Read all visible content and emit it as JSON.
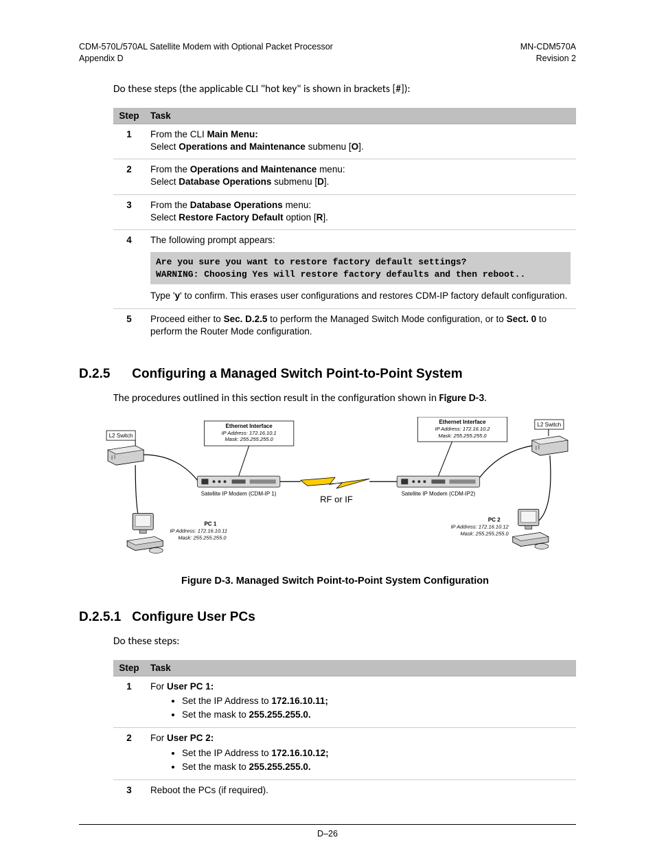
{
  "header": {
    "left_line1": "CDM-570L/570AL Satellite Modem with Optional Packet Processor",
    "left_line2": "Appendix D",
    "right_line1": "MN-CDM570A",
    "right_line2": "Revision 2"
  },
  "intro": "Do these steps (the applicable CLI \"hot key\" is shown in brackets [#]):",
  "table1": {
    "head_step": "Step",
    "head_task": "Task",
    "rows": [
      {
        "n": "1",
        "html": "From the CLI <b>Main Menu:</b><br>Select <b>Operations and Maintenance</b> submenu [<b>O</b>]."
      },
      {
        "n": "2",
        "html": "From the <b>Operations and Maintenance</b> menu:<br>Select <b>Database Operations</b> submenu [<b>D</b>]."
      },
      {
        "n": "3",
        "html": "From the <b>Database Operations</b> menu:<br>Select <b>Restore Factory Default</b> option [<b>R</b>]."
      },
      {
        "n": "4",
        "html": "The following prompt appears:<div class=\"code-prompt\">Are you sure you want to restore factory default settings?\nWARNING: Choosing Yes will restore factory defaults and then reboot..</div>Type '<b>y</b>' to confirm. This erases user configurations and restores CDM-IP factory default configuration."
      },
      {
        "n": "5",
        "html": "Proceed either to <b>Sec. D.2.5</b> to perform the Managed Switch Mode configuration, or to <b>Sect. 0</b> to perform the Router Mode configuration."
      }
    ]
  },
  "section_d25": {
    "num": "D.2.5",
    "title": "Configuring a Managed Switch Point-to-Point System",
    "body_html": "The procedures outlined in this section result in the configuration shown in <b>Figure D-3</b>."
  },
  "figure": {
    "caption": "Figure D-3. Managed Switch Point-to-Point System Configuration",
    "rf_label": "RF or IF",
    "left": {
      "l2": "L2 Switch",
      "eth_title": "Ethernet Interface",
      "eth_ip": "IP Address:  172.16.10.1",
      "eth_mask": "Mask:  255.255.255.0",
      "modem": "Satellite IP Modem (CDM-IP 1)",
      "pc_title": "PC 1",
      "pc_ip": "IP Address:  172.16.10.11",
      "pc_mask": "Mask:  255.255.255.0"
    },
    "right": {
      "l2": "L2 Switch",
      "eth_title": "Ethernet Interface",
      "eth_ip": "IP Address:  172.16.10.2",
      "eth_mask": "Mask:  255.255.255.0",
      "modem": "Satellite IP Modem (CDM-IP2)",
      "pc_title": "PC 2",
      "pc_ip": "IP Address: 172.16.10.12",
      "pc_mask": "Mask: 255.255.255.0"
    },
    "colors": {
      "box_stroke": "#000000",
      "box_fill": "#ffffff",
      "modem_fill": "#d9d9d9",
      "modem_stroke": "#444444",
      "line": "#000000",
      "bolt": "#ffcc00",
      "bolt_stroke": "#000000",
      "switch_fill": "#d0d0d0",
      "pc_fill": "#c8c8c8",
      "text": "#000000"
    }
  },
  "section_d251": {
    "num": "D.2.5.1",
    "title": "Configure User PCs",
    "intro": "Do these steps:"
  },
  "table2": {
    "head_step": "Step",
    "head_task": "Task",
    "rows": [
      {
        "n": "1",
        "html": "For <b>User PC 1:</b><ul class=\"task-list\"><li>Set the IP Address to <b>172.16.10.11;</b></li><li>Set the mask to <b>255.255.255.0.</b></li></ul>"
      },
      {
        "n": "2",
        "html": "For <b>User PC 2:</b><ul class=\"task-list\"><li>Set the IP Address to <b>172.16.10.12;</b></li><li>Set the mask to <b>255.255.255.0.</b></li></ul>"
      },
      {
        "n": "3",
        "html": "Reboot the PCs (if required)."
      }
    ]
  },
  "footer": "D–26"
}
